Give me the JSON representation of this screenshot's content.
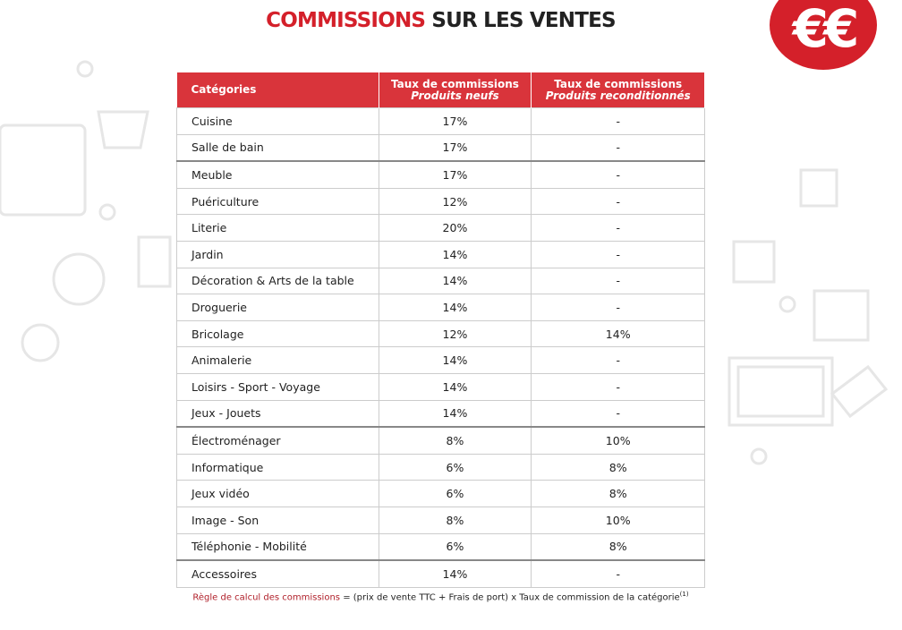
{
  "header": {
    "title_accent": "COMMISSIONS",
    "title_rest": "SUR LES VENTES",
    "logo": "€€"
  },
  "table": {
    "columns": [
      {
        "line1": "Catégories"
      },
      {
        "line1": "Taux de commissions",
        "line2": "Produits neufs"
      },
      {
        "line1": "Taux de commissions",
        "line2": "Produits reconditionnés"
      }
    ],
    "rows": [
      [
        "Cuisine",
        "17%",
        "-"
      ],
      [
        "Salle de bain",
        "17%",
        "-"
      ],
      [
        "Meuble",
        "17%",
        "-"
      ],
      [
        "Puériculture",
        "12%",
        "-"
      ],
      [
        "Literie",
        "20%",
        "-"
      ],
      [
        "Jardin",
        "14%",
        "-"
      ],
      [
        "Décoration & Arts de la table",
        "14%",
        "-"
      ],
      [
        "Droguerie",
        "14%",
        "-"
      ],
      [
        "Bricolage",
        "12%",
        "14%"
      ],
      [
        "Animalerie",
        "14%",
        "-"
      ],
      [
        "Loisirs - Sport - Voyage",
        "14%",
        "-"
      ],
      [
        "Jeux - Jouets",
        "14%",
        "-"
      ],
      [
        "Électroménager",
        "8%",
        "10%"
      ],
      [
        "Informatique",
        "6%",
        "8%"
      ],
      [
        "Jeux vidéo",
        "6%",
        "8%"
      ],
      [
        "Image - Son",
        "8%",
        "10%"
      ],
      [
        "Téléphonie - Mobilité",
        "6%",
        "8%"
      ],
      [
        "Accessoires",
        "14%",
        "-"
      ]
    ]
  },
  "footnote": {
    "label": "Règle de calcul des commissions",
    "text": "= (prix de vente TTC + Frais de port) x Taux de commission de la catégorie",
    "ref": "(1)"
  }
}
